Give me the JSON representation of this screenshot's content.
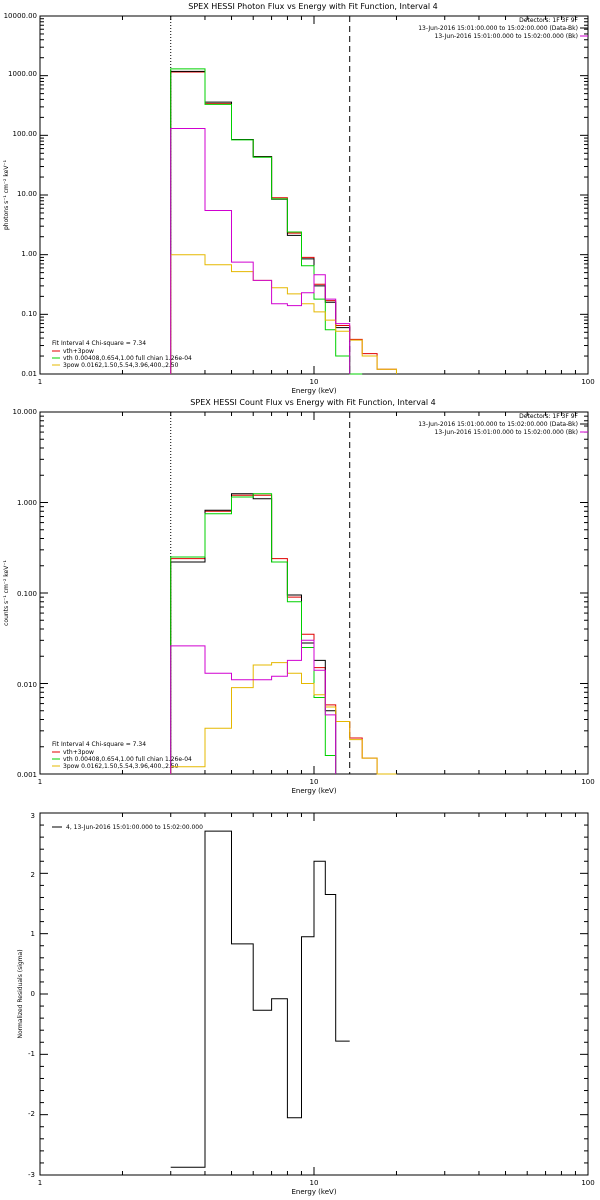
{
  "colors": {
    "data": "#000000",
    "total": "#e00000",
    "vth": "#00d000",
    "pow": "#e5b800",
    "bk": "#d000d0"
  },
  "chart_data": [
    {
      "type": "line",
      "title": "SPEX HESSI Photon Flux vs Energy with Fit Function, Interval 4",
      "xlabel": "Energy (keV)",
      "ylabel": "photons s⁻¹ cm⁻² keV⁻¹",
      "xscale": "log",
      "yscale": "log",
      "xlim": [
        1,
        100
      ],
      "ylim": [
        0.01,
        10000
      ],
      "xticks": [
        "1",
        "10",
        "100"
      ],
      "yticks": [
        "0.01",
        "0.10",
        "1.00",
        "10.00",
        "100.00",
        "1000.00",
        "10000.00"
      ],
      "detectors": "Detectors: 1F 3F 9F",
      "legend_right": [
        "13-Jun-2016 15:01:00.000 to 15:02:00.000 (Data-Bk)",
        "13-Jun-2016 15:01:00.000 to 15:02:00.000 (Bk)"
      ],
      "fit_info": "Fit Interval 4  Chi-square = 7.34",
      "legend_left": [
        "vth+3pow",
        "vth 0.00408,0.654,1.00  full chian 1.26e-04",
        "3pow 0.0162,1.50,5.54,3.96,400.,2.50"
      ],
      "edges": [
        3.0,
        4.0,
        5.0,
        6.0,
        7.0,
        8.0,
        9.0,
        10.0,
        11.0,
        12.0,
        13.5,
        15.0,
        17.0,
        20.0
      ],
      "fit_range": [
        3.0,
        13.5
      ],
      "series": [
        {
          "name": "vth+3pow",
          "color_key": "total",
          "values": [
            1150,
            340,
            85,
            44,
            9,
            2.3,
            0.9,
            0.32,
            0.17,
            0.065,
            0.038,
            0.022,
            0.012
          ]
        },
        {
          "name": "Data-Bk",
          "color_key": "data",
          "values": [
            1180,
            360,
            85,
            44,
            8.5,
            2.1,
            0.85,
            0.3,
            0.16,
            0.06,
            null,
            null,
            null
          ]
        },
        {
          "name": "vth",
          "color_key": "vth",
          "values": [
            1300,
            330,
            84,
            43,
            8.6,
            2.4,
            0.65,
            0.18,
            0.055,
            0.02,
            0.01,
            null,
            null
          ]
        },
        {
          "name": "3pow",
          "color_key": "pow",
          "values": [
            1.0,
            0.68,
            0.52,
            0.37,
            0.28,
            0.22,
            0.15,
            0.11,
            0.08,
            0.052,
            0.037,
            0.02,
            0.012
          ]
        },
        {
          "name": "Bk",
          "color_key": "bk",
          "values": [
            130,
            5.5,
            0.75,
            0.37,
            0.15,
            0.14,
            0.23,
            0.46,
            0.18,
            0.07,
            null,
            null,
            null
          ]
        }
      ]
    },
    {
      "type": "line",
      "title": "SPEX HESSI Count Flux vs Energy with Fit Function, Interval 4",
      "xlabel": "Energy (keV)",
      "ylabel": "counts s⁻¹ cm⁻² keV⁻¹",
      "xscale": "log",
      "yscale": "log",
      "xlim": [
        1,
        100
      ],
      "ylim": [
        0.001,
        10
      ],
      "xticks": [
        "1",
        "10",
        "100"
      ],
      "yticks": [
        "0.001",
        "0.010",
        "0.100",
        "1.000",
        "10.000"
      ],
      "detectors": "Detectors: 1F 3F 9F",
      "legend_right": [
        "13-Jun-2016 15:01:00.000 to 15:02:00.000 (Data-Bk)",
        "13-Jun-2016 15:01:00.000 to 15:02:00.000 (Bk)"
      ],
      "fit_info": "Fit Interval 4  Chi-square = 7.34",
      "legend_left": [
        "vth+3pow",
        "vth 0.00408,0.654,1.00  full chian 1.26e-04",
        "3pow 0.0162,1.50,5.54,3.96,400.,2.50"
      ],
      "edges": [
        3.0,
        4.0,
        5.0,
        6.0,
        7.0,
        8.0,
        9.0,
        10.0,
        11.0,
        12.0,
        13.5,
        15.0,
        17.0,
        20.0
      ],
      "fit_range": [
        3.0,
        13.5
      ],
      "series": [
        {
          "name": "vth+3pow",
          "color_key": "total",
          "values": [
            0.24,
            0.8,
            1.2,
            1.2,
            0.24,
            0.09,
            0.035,
            0.015,
            0.0058,
            0.0038,
            0.0025,
            0.0015,
            0.001
          ]
        },
        {
          "name": "Data-Bk",
          "color_key": "data",
          "values": [
            0.22,
            0.82,
            1.25,
            1.1,
            0.22,
            0.095,
            0.028,
            0.018,
            0.005,
            null,
            null,
            null,
            null
          ]
        },
        {
          "name": "vth",
          "color_key": "vth",
          "values": [
            0.25,
            0.75,
            1.15,
            1.25,
            0.22,
            0.08,
            0.025,
            0.007,
            0.0016,
            null,
            null,
            null,
            null
          ]
        },
        {
          "name": "3pow",
          "color_key": "pow",
          "values": [
            0.0012,
            0.0032,
            0.009,
            0.016,
            0.017,
            0.013,
            0.01,
            0.0075,
            0.0055,
            0.0038,
            0.0024,
            0.0015,
            0.001
          ]
        },
        {
          "name": "Bk",
          "color_key": "bk",
          "values": [
            0.026,
            0.013,
            0.011,
            0.011,
            0.012,
            0.018,
            0.03,
            0.014,
            0.0045,
            null,
            null,
            null,
            null
          ]
        }
      ]
    },
    {
      "type": "line",
      "title": "",
      "xlabel": "Energy (keV)",
      "ylabel": "Normalized Residuals (sigma)",
      "xscale": "log",
      "xlim": [
        1,
        100
      ],
      "ylim": [
        -3,
        3
      ],
      "xticks": [
        "1",
        "10",
        "100"
      ],
      "yticks": [
        "-3",
        "-2",
        "-1",
        "0",
        "1",
        "2",
        "3"
      ],
      "legend": "4, 13-Jun-2016 15:01:00.000 to 15:02:00.000",
      "edges": [
        3.0,
        4.0,
        5.0,
        6.0,
        7.0,
        8.0,
        9.0,
        10.0,
        11.0,
        12.0,
        13.5
      ],
      "series": [
        {
          "name": "4, 13-Jun-2016 15:01:00.000 to 15:02:00.000",
          "color_key": "data",
          "values": [
            -2.87,
            2.7,
            0.83,
            -0.27,
            -0.08,
            -2.05,
            0.95,
            2.2,
            1.65,
            -0.78
          ]
        }
      ]
    }
  ]
}
